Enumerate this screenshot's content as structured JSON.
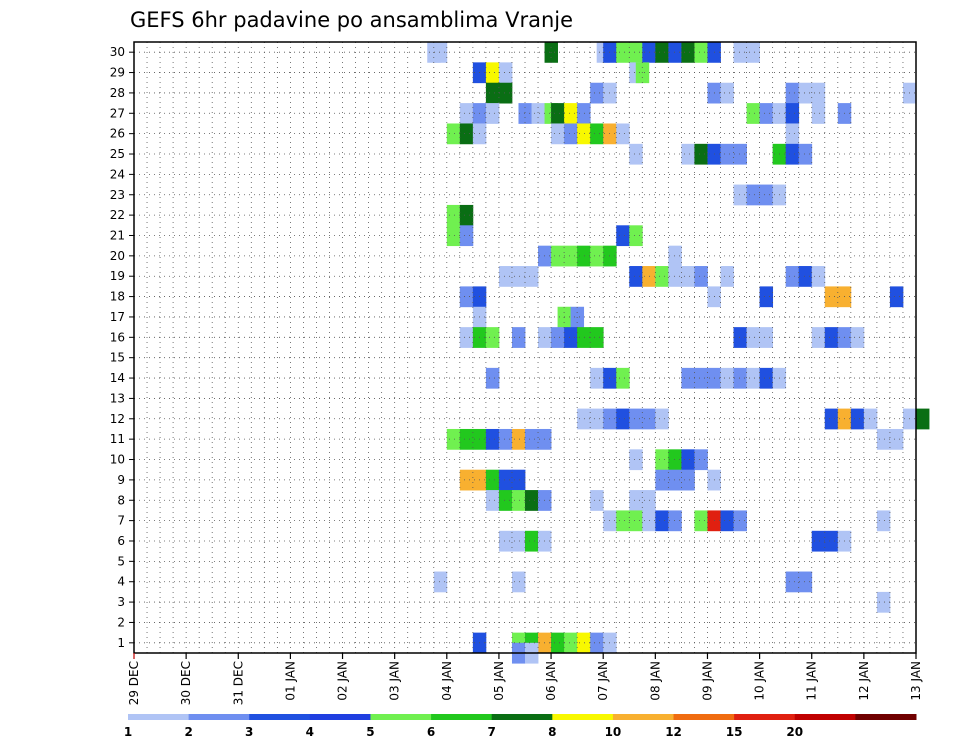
{
  "chart_data": {
    "type": "heatmap",
    "title": "GEFS 6hr padavine po ansamblima Vranje",
    "x_tick_labels": [
      "29 DEC",
      "30 DEC",
      "31 DEC",
      "01 JAN",
      "02 JAN",
      "03 JAN",
      "04 JAN",
      "05 JAN",
      "06 JAN",
      "07 JAN",
      "08 JAN",
      "09 JAN",
      "10 JAN",
      "11 JAN",
      "12 JAN",
      "13 JAN"
    ],
    "y_tick_labels": [
      "1",
      "2",
      "3",
      "4",
      "5",
      "6",
      "7",
      "8",
      "9",
      "10",
      "11",
      "12",
      "13",
      "14",
      "15",
      "16",
      "17",
      "18",
      "19",
      "20",
      "21",
      "22",
      "23",
      "24",
      "25",
      "26",
      "27",
      "28",
      "29",
      "30"
    ],
    "x_unit": "6-hour step from 29 DEC 00Z",
    "x_range": [
      0,
      60
    ],
    "y_range": [
      0.5,
      30.5
    ],
    "grid": true,
    "legend": {
      "position": "bottom",
      "labels": [
        "1",
        "2",
        "3",
        "4",
        "5",
        "6",
        "7",
        "8",
        "10",
        "12",
        "15",
        "20"
      ],
      "colors": [
        "#b0c4f5",
        "#6f8ff0",
        "#2050e0",
        "#1f3ee0",
        "#70f050",
        "#22c81e",
        "#0a6e14",
        "#f8f800",
        "#f8b030",
        "#f06c10",
        "#e02010",
        "#c00000",
        "#700000"
      ]
    },
    "level_colors": {
      "1": "#b0c4f5",
      "2": "#6f8ff0",
      "3": "#2050e0",
      "5": "#70f050",
      "6": "#22c81e",
      "7": "#0a6e14",
      "8": "#f8f800",
      "10": "#f8b030",
      "12": "#f06c10",
      "15": "#e02010"
    },
    "cells": [
      [
        30,
        22.5,
        1
      ],
      [
        30,
        23,
        1
      ],
      [
        30,
        31.5,
        7
      ],
      [
        30,
        35.5,
        1
      ],
      [
        30,
        36,
        3
      ],
      [
        30,
        37,
        5
      ],
      [
        30,
        38,
        5
      ],
      [
        30,
        39,
        3
      ],
      [
        30,
        40,
        7
      ],
      [
        30,
        41,
        3
      ],
      [
        30,
        42,
        7
      ],
      [
        30,
        43,
        5
      ],
      [
        30,
        44,
        3
      ],
      [
        30,
        46,
        1
      ],
      [
        30,
        47,
        1
      ],
      [
        29,
        26,
        3
      ],
      [
        29,
        27,
        8
      ],
      [
        29,
        28,
        1
      ],
      [
        29,
        38,
        1
      ],
      [
        29,
        38.5,
        5
      ],
      [
        28,
        27,
        7
      ],
      [
        28,
        28,
        7
      ],
      [
        28,
        35,
        2
      ],
      [
        28,
        36,
        1
      ],
      [
        28,
        44,
        2
      ],
      [
        28,
        45,
        1
      ],
      [
        28,
        50,
        2
      ],
      [
        28,
        51,
        1
      ],
      [
        28,
        52,
        1
      ],
      [
        28,
        59,
        1
      ],
      [
        27,
        25,
        1
      ],
      [
        27,
        26,
        2
      ],
      [
        27,
        27,
        1
      ],
      [
        27,
        29.5,
        2
      ],
      [
        27,
        30.5,
        1
      ],
      [
        27,
        31.5,
        5
      ],
      [
        27,
        32,
        7
      ],
      [
        27,
        33,
        8
      ],
      [
        27,
        34,
        2
      ],
      [
        27,
        47,
        5
      ],
      [
        27,
        48,
        2
      ],
      [
        27,
        49,
        1
      ],
      [
        27,
        50,
        3
      ],
      [
        27,
        52,
        1
      ],
      [
        27,
        54,
        2
      ],
      [
        26,
        24,
        5
      ],
      [
        26,
        25,
        7
      ],
      [
        26,
        26,
        1
      ],
      [
        26,
        32,
        1
      ],
      [
        26,
        33,
        2
      ],
      [
        26,
        34,
        8
      ],
      [
        26,
        35,
        6
      ],
      [
        26,
        36,
        10
      ],
      [
        26,
        37,
        1
      ],
      [
        26,
        50,
        1
      ],
      [
        25,
        38,
        1
      ],
      [
        25,
        42,
        1
      ],
      [
        25,
        43,
        7
      ],
      [
        25,
        44,
        3
      ],
      [
        25,
        45,
        2
      ],
      [
        25,
        46,
        2
      ],
      [
        25,
        49,
        6
      ],
      [
        25,
        50,
        3
      ],
      [
        25,
        51,
        2
      ],
      [
        23,
        46,
        1
      ],
      [
        23,
        47,
        2
      ],
      [
        23,
        48,
        2
      ],
      [
        23,
        49,
        1
      ],
      [
        22,
        24,
        5
      ],
      [
        22,
        25,
        7
      ],
      [
        21,
        24,
        5
      ],
      [
        21,
        25,
        2
      ],
      [
        21,
        37,
        3
      ],
      [
        21,
        38,
        5
      ],
      [
        20,
        31,
        2
      ],
      [
        20,
        32,
        5
      ],
      [
        20,
        33,
        5
      ],
      [
        20,
        34,
        6
      ],
      [
        20,
        35,
        5
      ],
      [
        20,
        36,
        6
      ],
      [
        20,
        41,
        1
      ],
      [
        19,
        28,
        1
      ],
      [
        19,
        29,
        1
      ],
      [
        19,
        30,
        1
      ],
      [
        19,
        38,
        3
      ],
      [
        19,
        39,
        10
      ],
      [
        19,
        40,
        5
      ],
      [
        19,
        41,
        1
      ],
      [
        19,
        42,
        1
      ],
      [
        19,
        43,
        2
      ],
      [
        19,
        45,
        1
      ],
      [
        19,
        50,
        2
      ],
      [
        19,
        51,
        3
      ],
      [
        19,
        52,
        1
      ],
      [
        18,
        25,
        2
      ],
      [
        18,
        26,
        3
      ],
      [
        18,
        44,
        1
      ],
      [
        18,
        48,
        3
      ],
      [
        18,
        53,
        10
      ],
      [
        18,
        54,
        10
      ],
      [
        18,
        58,
        3
      ],
      [
        17,
        26,
        1
      ],
      [
        17,
        32.5,
        5
      ],
      [
        17,
        33.5,
        2
      ],
      [
        16,
        25,
        1
      ],
      [
        16,
        26,
        6
      ],
      [
        16,
        27,
        5
      ],
      [
        16,
        29,
        2
      ],
      [
        16,
        31,
        1
      ],
      [
        16,
        32,
        2
      ],
      [
        16,
        33,
        3
      ],
      [
        16,
        34,
        6
      ],
      [
        16,
        35,
        6
      ],
      [
        16,
        46,
        3
      ],
      [
        16,
        47,
        1
      ],
      [
        16,
        48,
        1
      ],
      [
        16,
        52,
        1
      ],
      [
        16,
        53,
        3
      ],
      [
        16,
        54,
        2
      ],
      [
        16,
        55,
        1
      ],
      [
        14,
        27,
        2
      ],
      [
        14,
        35,
        1
      ],
      [
        14,
        36,
        3
      ],
      [
        14,
        37,
        5
      ],
      [
        14,
        42,
        2
      ],
      [
        14,
        43,
        2
      ],
      [
        14,
        44,
        2
      ],
      [
        14,
        45,
        1
      ],
      [
        14,
        46,
        2
      ],
      [
        14,
        47,
        1
      ],
      [
        14,
        48,
        3
      ],
      [
        14,
        49,
        1
      ],
      [
        12,
        34,
        1
      ],
      [
        12,
        35,
        1
      ],
      [
        12,
        36,
        2
      ],
      [
        12,
        37,
        3
      ],
      [
        12,
        38,
        2
      ],
      [
        12,
        39,
        2
      ],
      [
        12,
        40,
        1
      ],
      [
        12,
        53,
        3
      ],
      [
        12,
        54,
        10
      ],
      [
        12,
        55,
        3
      ],
      [
        12,
        56,
        1
      ],
      [
        12,
        59,
        1
      ],
      [
        12,
        60,
        7
      ],
      [
        11,
        24,
        5
      ],
      [
        11,
        25,
        6
      ],
      [
        11,
        26,
        6
      ],
      [
        11,
        27,
        3
      ],
      [
        11,
        28,
        2
      ],
      [
        11,
        29,
        10
      ],
      [
        11,
        30,
        2
      ],
      [
        11,
        31,
        2
      ],
      [
        11,
        57,
        1
      ],
      [
        11,
        58,
        1
      ],
      [
        10,
        38,
        1
      ],
      [
        10,
        40,
        5
      ],
      [
        10,
        41,
        6
      ],
      [
        10,
        42,
        3
      ],
      [
        10,
        43,
        2
      ],
      [
        9,
        25,
        10
      ],
      [
        9,
        26,
        10
      ],
      [
        9,
        27,
        6
      ],
      [
        9,
        28,
        3
      ],
      [
        9,
        29,
        3
      ],
      [
        9,
        40,
        2
      ],
      [
        9,
        41,
        2
      ],
      [
        9,
        42,
        2
      ],
      [
        9,
        44,
        1
      ],
      [
        8,
        27,
        1
      ],
      [
        8,
        28,
        6
      ],
      [
        8,
        29,
        5
      ],
      [
        8,
        30,
        7
      ],
      [
        8,
        31,
        2
      ],
      [
        8,
        35,
        1
      ],
      [
        8,
        38,
        1
      ],
      [
        8,
        39,
        1
      ],
      [
        7,
        36,
        1
      ],
      [
        7,
        37,
        5
      ],
      [
        7,
        38,
        5
      ],
      [
        7,
        39,
        1
      ],
      [
        7,
        40,
        3
      ],
      [
        7,
        41,
        2
      ],
      [
        7,
        43,
        5
      ],
      [
        7,
        44,
        15
      ],
      [
        7,
        45,
        3
      ],
      [
        7,
        46,
        2
      ],
      [
        7,
        57,
        1
      ],
      [
        6,
        28,
        1
      ],
      [
        6,
        29,
        1
      ],
      [
        6,
        30,
        6
      ],
      [
        6,
        31,
        1
      ],
      [
        6,
        52,
        3
      ],
      [
        6,
        53,
        3
      ],
      [
        6,
        54,
        1
      ],
      [
        4,
        23,
        1
      ],
      [
        4,
        29,
        1
      ],
      [
        4,
        50,
        2
      ],
      [
        4,
        51,
        2
      ],
      [
        3,
        57,
        1
      ],
      [
        1,
        26,
        3
      ],
      [
        1,
        29,
        5
      ],
      [
        1,
        30,
        6
      ],
      [
        1,
        31,
        10
      ],
      [
        1,
        32,
        6
      ],
      [
        1,
        33,
        5
      ],
      [
        1,
        34,
        8
      ],
      [
        1,
        35,
        2
      ],
      [
        1,
        36,
        1
      ],
      [
        0.5,
        29,
        2
      ],
      [
        0.5,
        30,
        1
      ]
    ]
  }
}
